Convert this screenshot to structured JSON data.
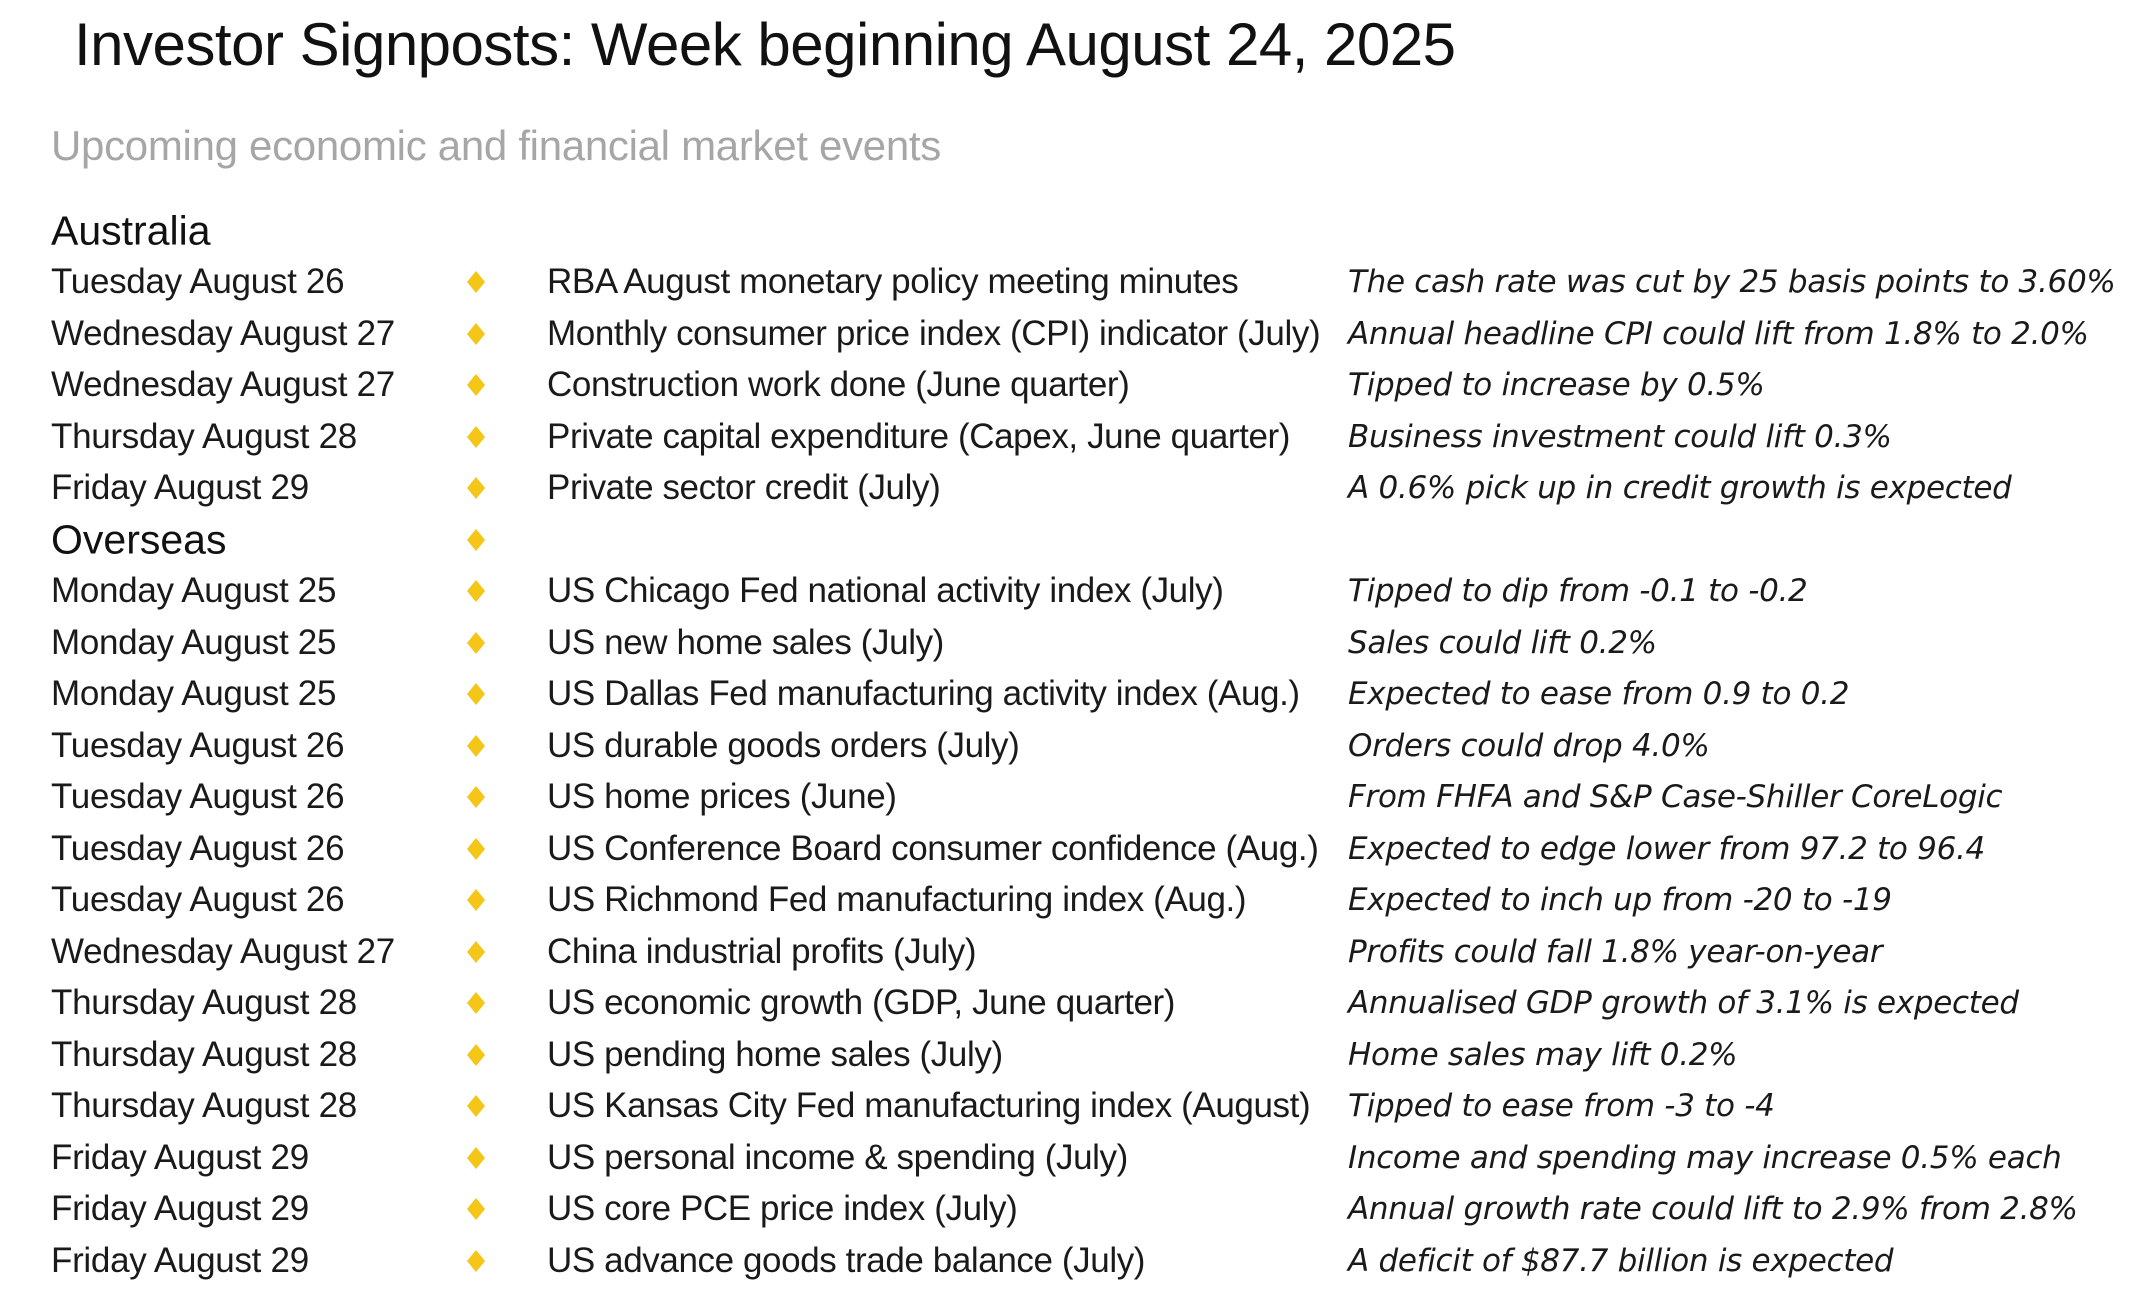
{
  "title": "Investor Signposts: Week beginning August 24, 2025",
  "subtitle": "Upcoming economic and financial market events",
  "colors": {
    "diamond": "#f5c518",
    "subtitle": "#a6a6a6"
  },
  "sections": [
    {
      "heading": "Australia",
      "heading_marker": false,
      "rows": [
        {
          "date": "Tuesday August 26",
          "event": "RBA August monetary policy meeting minutes",
          "comment": "The cash rate was cut by 25 basis points to 3.60%"
        },
        {
          "date": "Wednesday August 27",
          "event": "Monthly consumer price index (CPI) indicator (July)",
          "comment": "Annual headline CPI could lift from 1.8% to 2.0%"
        },
        {
          "date": "Wednesday August 27",
          "event": "Construction work done (June quarter)",
          "comment": "Tipped to increase by 0.5%"
        },
        {
          "date": "Thursday August 28",
          "event": "Private capital expenditure (Capex, June quarter)",
          "comment": "Business investment could lift 0.3%"
        },
        {
          "date": "Friday August 29",
          "event": "Private sector credit (July)",
          "comment": "A 0.6% pick up in credit growth is expected"
        }
      ]
    },
    {
      "heading": "Overseas",
      "heading_marker": true,
      "rows": [
        {
          "date": "Monday August 25",
          "event": "US Chicago Fed national activity index (July)",
          "comment": "Tipped to dip from -0.1 to -0.2"
        },
        {
          "date": "Monday August 25",
          "event": "US new home sales (July)",
          "comment": "Sales could lift 0.2%"
        },
        {
          "date": "Monday August 25",
          "event": "US Dallas Fed manufacturing activity index (Aug.)",
          "comment": "Expected to ease from 0.9 to 0.2"
        },
        {
          "date": "Tuesday August 26",
          "event": "US durable goods orders (July)",
          "comment": "Orders could drop 4.0%"
        },
        {
          "date": "Tuesday August 26",
          "event": "US home prices (June)",
          "comment": "From FHFA and S&P Case-Shiller CoreLogic"
        },
        {
          "date": "Tuesday August 26",
          "event": "US Conference Board consumer confidence (Aug.)",
          "comment": "Expected to edge lower from 97.2 to 96.4"
        },
        {
          "date": "Tuesday August 26",
          "event": "US Richmond Fed manufacturing index (Aug.)",
          "comment": "Expected to inch up from -20 to -19"
        },
        {
          "date": "Wednesday August 27",
          "event": "China industrial profits (July)",
          "comment": "Profits could fall 1.8% year-on-year"
        },
        {
          "date": "Thursday August 28",
          "event": "US economic growth (GDP, June quarter)",
          "comment": "Annualised GDP growth of 3.1% is expected"
        },
        {
          "date": "Thursday August 28",
          "event": "US pending home sales (July)",
          "comment": "Home sales may lift 0.2%"
        },
        {
          "date": "Thursday August 28",
          "event": "US Kansas City Fed manufacturing index (August)",
          "comment": "Tipped to ease from -3 to -4"
        },
        {
          "date": "Friday August 29",
          "event": "US personal income & spending (July)",
          "comment": "Income and spending may increase 0.5% each"
        },
        {
          "date": "Friday August 29",
          "event": "US core PCE price index (July)",
          "comment": "Annual growth rate could lift to 2.9% from 2.8%"
        },
        {
          "date": "Friday August 29",
          "event": "US advance goods trade balance (July)",
          "comment": "A deficit of $87.7 billion is expected"
        }
      ]
    }
  ]
}
